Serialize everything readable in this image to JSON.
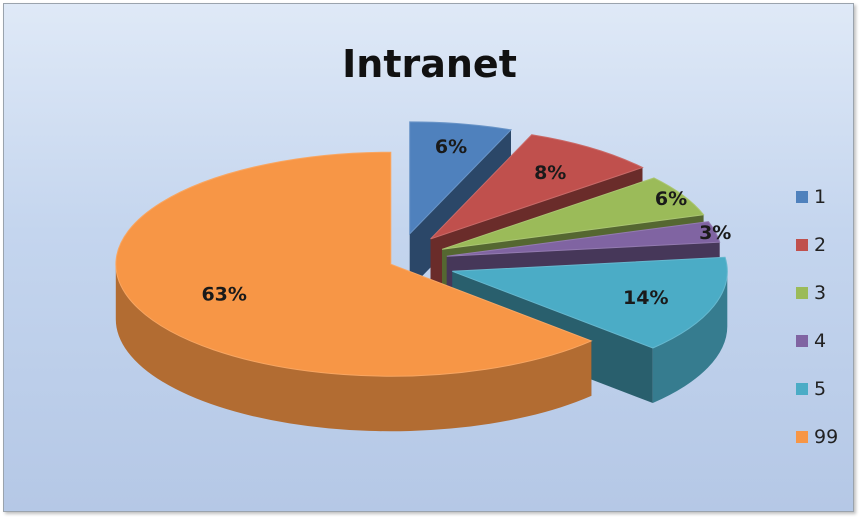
{
  "chart_data": {
    "type": "pie",
    "title": "Intranet",
    "categories": [
      "1",
      "2",
      "3",
      "4",
      "5",
      "99"
    ],
    "values": [
      6,
      8,
      6,
      3,
      14,
      63
    ],
    "value_labels": [
      "6%",
      "8%",
      "6%",
      "3%",
      "14%",
      "63%"
    ],
    "colors": [
      "#4f81bd",
      "#c0504d",
      "#9bbb59",
      "#8064a2",
      "#4bacc6",
      "#f79646"
    ],
    "style": "3d-exploded",
    "legend_position": "right"
  }
}
